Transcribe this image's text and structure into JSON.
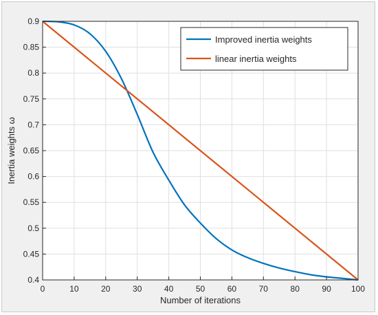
{
  "chart_data": {
    "type": "line",
    "xlabel": "Number of iterations",
    "ylabel": "Inertia weights ω",
    "xlim": [
      0,
      100
    ],
    "ylim": [
      0.4,
      0.9
    ],
    "xticks": [
      0,
      10,
      20,
      30,
      40,
      50,
      60,
      70,
      80,
      90,
      100
    ],
    "yticks": [
      0.4,
      0.45,
      0.5,
      0.55,
      0.6,
      0.65,
      0.7,
      0.75,
      0.8,
      0.85,
      0.9
    ],
    "ytick_labels": [
      "0.4",
      "0.45",
      "0.5",
      "0.55",
      "0.6",
      "0.65",
      "0.7",
      "0.75",
      "0.8",
      "0.85",
      "0.9"
    ],
    "grid": true,
    "legend_position": "top-right",
    "series": [
      {
        "name": "Improved inertia weights",
        "color": "#0072bd",
        "x": [
          0,
          5,
          10,
          15,
          20,
          25,
          30,
          35,
          40,
          45,
          50,
          55,
          60,
          65,
          70,
          75,
          80,
          85,
          90,
          95,
          100
        ],
        "y": [
          0.9,
          0.899,
          0.893,
          0.876,
          0.842,
          0.789,
          0.72,
          0.647,
          0.593,
          0.545,
          0.51,
          0.48,
          0.458,
          0.443,
          0.432,
          0.423,
          0.416,
          0.41,
          0.406,
          0.403,
          0.4
        ]
      },
      {
        "name": "linear inertia weights",
        "color": "#d95319",
        "x": [
          0,
          100
        ],
        "y": [
          0.9,
          0.4
        ]
      }
    ]
  }
}
